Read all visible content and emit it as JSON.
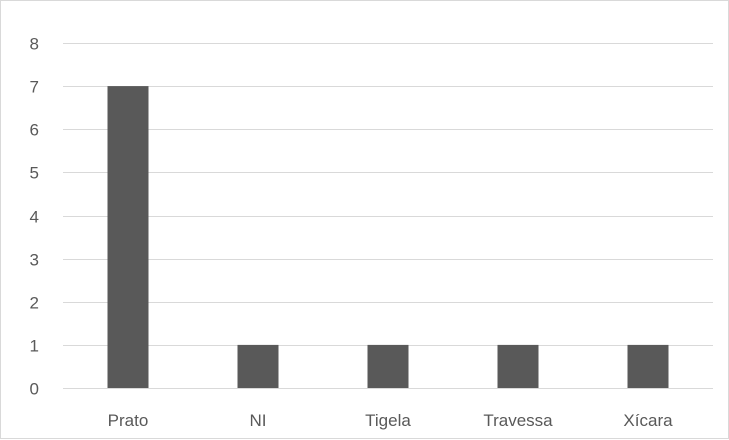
{
  "chart_data": {
    "type": "bar",
    "title": "",
    "xlabel": "",
    "ylabel": "",
    "categories": [
      "Prato",
      "NI",
      "Tigela",
      "Travessa",
      "Xícara"
    ],
    "values": [
      7,
      1,
      1,
      1,
      1
    ],
    "ylim": [
      0,
      8
    ],
    "yticks": [
      "0",
      "1",
      "2",
      "3",
      "4",
      "5",
      "6",
      "7",
      "8"
    ],
    "grid": true,
    "legend": "none",
    "colors": {
      "bar": "#595959",
      "grid": "#d9d9d9",
      "text": "#595959"
    }
  }
}
